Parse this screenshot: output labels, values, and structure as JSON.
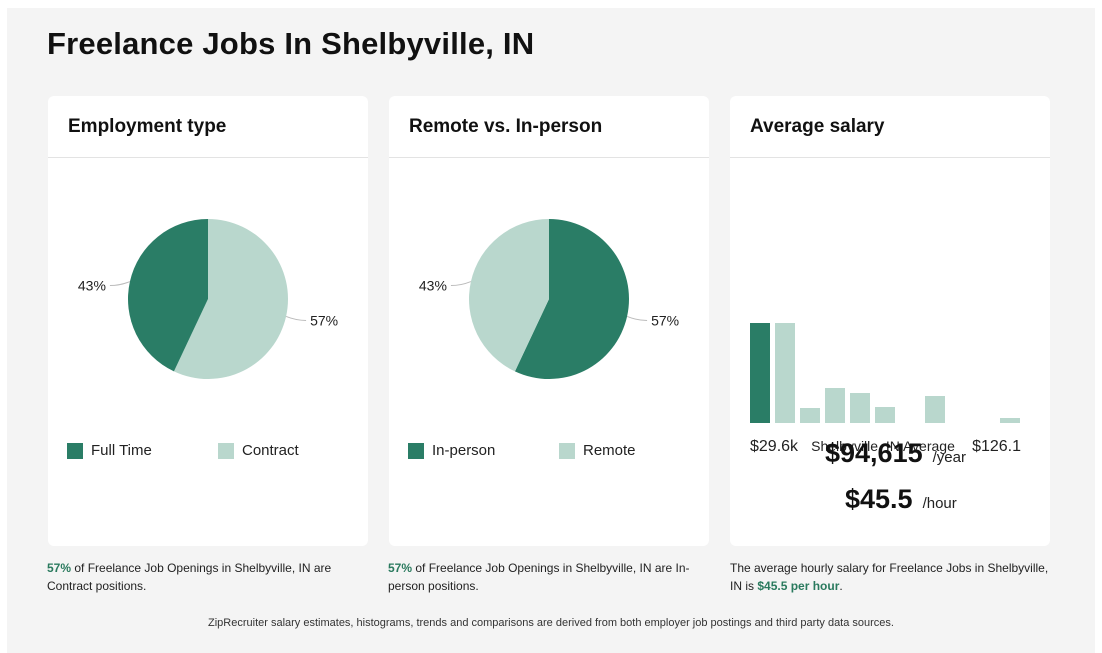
{
  "page": {
    "title": "Freelance Jobs In Shelbyville, IN",
    "footer": "ZipRecruiter salary estimates, histograms, trends and comparisons are derived from both employer job postings and third party data sources."
  },
  "colors": {
    "dark": "#2a7d66",
    "light": "#b9d7cd",
    "highlight": "#2a7a5e"
  },
  "cards": {
    "employment": {
      "title": "Employment type",
      "legend": [
        "Full Time",
        "Contract"
      ],
      "caption_highlight": "57%",
      "caption_text": " of Freelance Job Openings in Shelbyville, IN are Contract positions."
    },
    "remote": {
      "title": "Remote vs. In-person",
      "legend": [
        "In-person",
        "Remote"
      ],
      "caption_highlight": "57%",
      "caption_text": " of Freelance Job Openings in Shelbyville, IN are In-person positions."
    },
    "salary": {
      "title": "Average salary",
      "min_label": "$29.6k",
      "mid_label": "Shelbyville, IN Average",
      "max_label": "$126.1",
      "yearly": "$94,615",
      "yearly_unit": "/year",
      "hourly": "$45.5",
      "hourly_unit": "/hour",
      "caption_text": "The average hourly salary for Freelance Jobs in Shelbyville, IN is ",
      "caption_highlight": "$45.5 per hour",
      "caption_end": "."
    }
  },
  "chart_data": [
    {
      "type": "pie",
      "title": "Employment type",
      "slices": [
        {
          "label": "Full Time",
          "value": 43,
          "text": "43%",
          "color": "#2a7d66"
        },
        {
          "label": "Contract",
          "value": 57,
          "text": "57%",
          "color": "#b9d7cd"
        }
      ]
    },
    {
      "type": "pie",
      "title": "Remote vs. In-person",
      "slices": [
        {
          "label": "In-person",
          "value": 57,
          "text": "57%",
          "color": "#2a7d66"
        },
        {
          "label": "Remote",
          "value": 43,
          "text": "43%",
          "color": "#b9d7cd"
        }
      ]
    },
    {
      "type": "bar",
      "title": "Average salary",
      "values": [
        100,
        100,
        15,
        35,
        30,
        16,
        0,
        27,
        0,
        0,
        5
      ],
      "highlight_index": 0,
      "ylim": [
        0,
        100
      ],
      "xlabels": [
        "$29.6k",
        "Shelbyville, IN Average",
        "$126.1"
      ]
    }
  ]
}
